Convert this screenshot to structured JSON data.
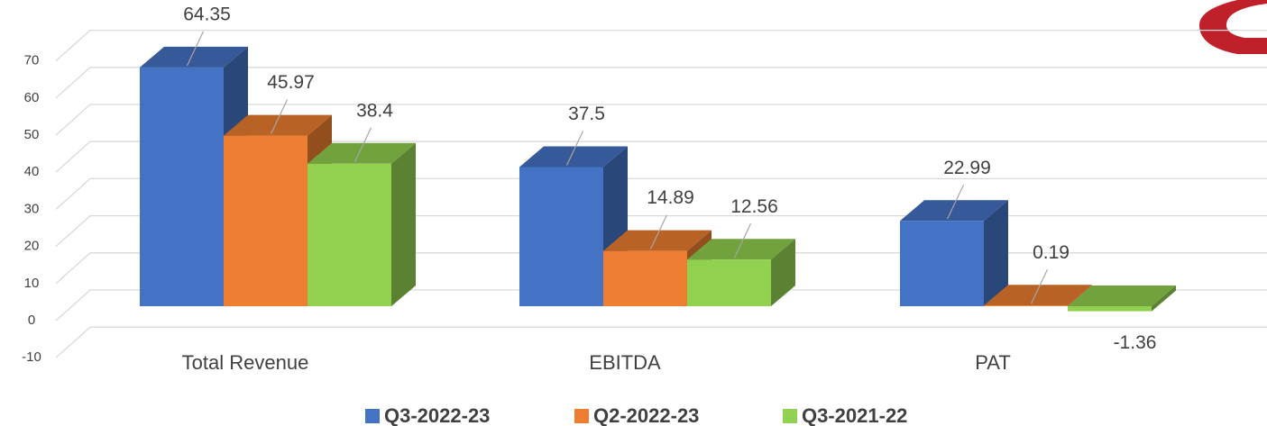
{
  "chart_data": {
    "type": "bar3d",
    "categories": [
      "Total Revenue",
      "EBITDA",
      "PAT"
    ],
    "series": [
      {
        "name": "Q3-2022-23",
        "color": "#4472c4",
        "values": [
          64.35,
          37.5,
          22.99
        ]
      },
      {
        "name": "Q2-2022-23",
        "color": "#ed7d31",
        "values": [
          45.97,
          14.89,
          0.19
        ]
      },
      {
        "name": "Q3-2021-22",
        "color": "#92d050",
        "values": [
          38.4,
          12.56,
          -1.36
        ]
      }
    ],
    "ylim": [
      -10,
      80
    ],
    "yticks": [
      -10,
      0,
      10,
      20,
      30,
      40,
      50,
      60,
      70
    ],
    "grid": true,
    "legend": "bottom"
  }
}
